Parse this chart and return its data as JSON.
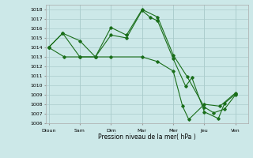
{
  "xlabel": "Pression niveau de la mer( hPa )",
  "x_labels": [
    "Dioun",
    "Sam",
    "Dim",
    "Mar",
    "Mer",
    "Jeu",
    "Ven"
  ],
  "x_ticks": [
    0,
    1,
    2,
    3,
    4,
    5,
    6
  ],
  "ylim": [
    1006,
    1018.5
  ],
  "xlim": [
    -0.1,
    6.4
  ],
  "yticks": [
    1006,
    1007,
    1008,
    1009,
    1010,
    1011,
    1012,
    1013,
    1014,
    1015,
    1016,
    1017,
    1018
  ],
  "bg_color": "#cce8e8",
  "grid_color": "#aacccc",
  "line_color": "#1a6e1a",
  "lines": [
    {
      "x": [
        0.0,
        0.45,
        1.0,
        1.5,
        2.0,
        2.5,
        3.0,
        3.25,
        3.5,
        4.0,
        4.4,
        4.6,
        5.0,
        5.45,
        5.65,
        6.0
      ],
      "y": [
        1014.0,
        1015.5,
        1014.7,
        1013.0,
        1015.3,
        1015.0,
        1017.9,
        1017.2,
        1016.8,
        1012.8,
        1009.9,
        1010.8,
        1007.2,
        1006.5,
        1008.1,
        1009.1
      ]
    },
    {
      "x": [
        0.0,
        0.45,
        1.0,
        1.5,
        2.0,
        2.5,
        3.0,
        3.5,
        4.0,
        4.45,
        5.0,
        5.3,
        5.65,
        6.0
      ],
      "y": [
        1014.0,
        1015.5,
        1013.0,
        1013.0,
        1016.1,
        1015.3,
        1018.0,
        1017.2,
        1013.2,
        1010.9,
        1007.7,
        1007.1,
        1007.5,
        1009.0
      ]
    },
    {
      "x": [
        0.0,
        0.5,
        1.0,
        1.5,
        2.0,
        3.0,
        3.5,
        4.0,
        4.3,
        4.5,
        5.0,
        5.5,
        6.0
      ],
      "y": [
        1014.0,
        1013.0,
        1013.0,
        1013.0,
        1013.0,
        1013.0,
        1012.5,
        1011.5,
        1007.8,
        1006.4,
        1008.0,
        1007.8,
        1009.2
      ]
    }
  ]
}
